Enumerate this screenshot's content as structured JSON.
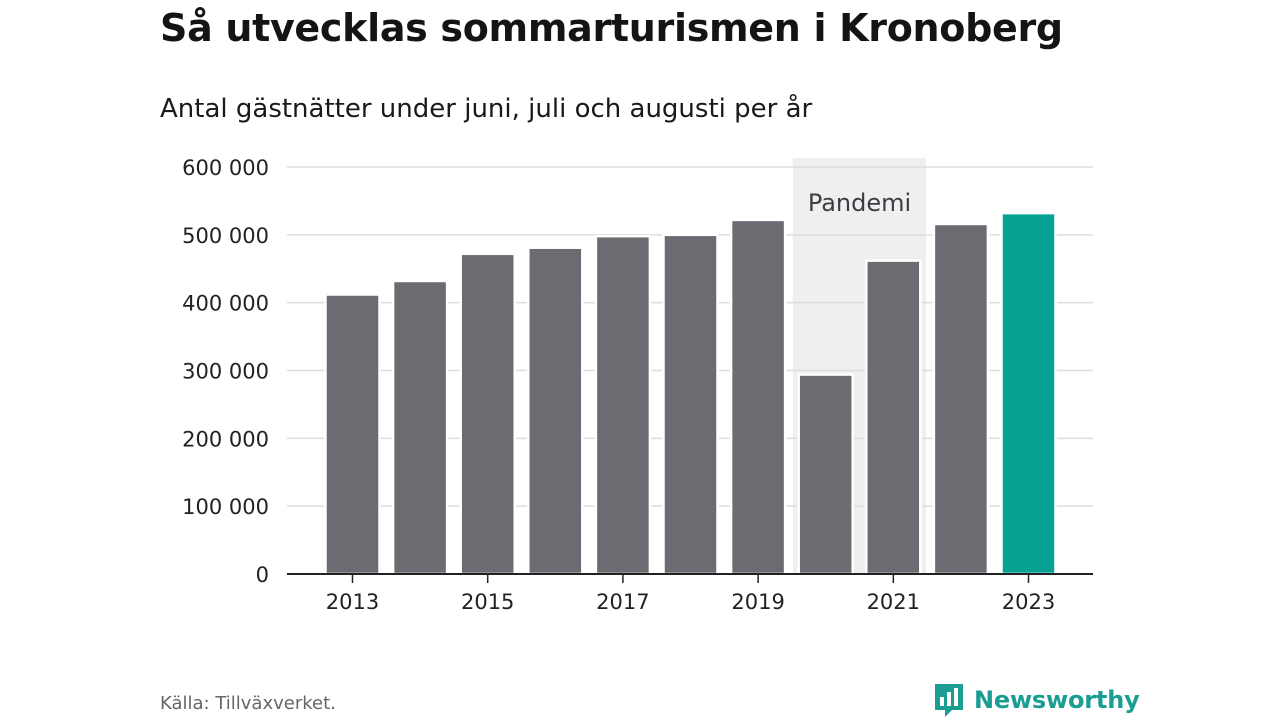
{
  "title": "Så utvecklas sommarturismen i Kronoberg",
  "subtitle": "Antal gästnätter under juni, juli och augusti per år",
  "source": "Källa: Tillväxverket.",
  "brand": {
    "name": "Newsworthy",
    "icon": "newsworthy-logo-icon"
  },
  "colors": {
    "bar": "#6c6b72",
    "highlight": "#07a294",
    "shade": "#efefef",
    "grid": "#dddddd",
    "axis": "#222222",
    "brand": "#1a9e93"
  },
  "chart_data": {
    "type": "bar",
    "categories": [
      "2013",
      "2014",
      "2015",
      "2016",
      "2017",
      "2018",
      "2019",
      "2020",
      "2021",
      "2022",
      "2023"
    ],
    "values": [
      412000,
      432000,
      472000,
      481000,
      498000,
      500000,
      522000,
      294000,
      462000,
      516000,
      532000
    ],
    "highlight_category": "2023",
    "x_tick_labels": [
      "2013",
      "2015",
      "2017",
      "2019",
      "2021",
      "2023"
    ],
    "y_tick_values": [
      0,
      100000,
      200000,
      300000,
      400000,
      500000,
      600000
    ],
    "y_tick_labels": [
      "0",
      "100 000",
      "200 000",
      "300 000",
      "400 000",
      "500 000",
      "600 000"
    ],
    "ylim": [
      0,
      600000
    ],
    "grid": true,
    "annotation": {
      "label": "Pandemi",
      "from": "2020",
      "to": "2021"
    },
    "xlabel": "",
    "ylabel": ""
  }
}
